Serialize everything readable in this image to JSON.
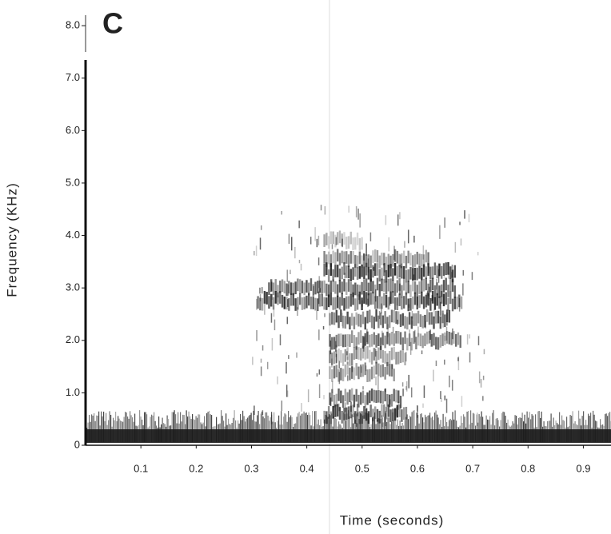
{
  "chart_data": {
    "type": "spectrogram",
    "panel_label": "C",
    "x_label": "Time  (seconds)",
    "y_label": "Frequency  (KHz)",
    "xlim": [
      0,
      0.95
    ],
    "xticks": [
      0.1,
      0.2,
      0.3,
      0.4,
      0.5,
      0.6,
      0.7,
      0.8,
      0.9
    ],
    "ylim": [
      0,
      8.2
    ],
    "yticks": [
      0,
      {
        "value": 1,
        "label": "1.0"
      },
      {
        "value": 2,
        "label": "2.0"
      },
      {
        "value": 3,
        "label": "3.0"
      },
      {
        "value": 4,
        "label": "4.0"
      },
      {
        "value": 5,
        "label": "5.0"
      },
      {
        "value": 6,
        "label": "6.0"
      },
      {
        "value": 7,
        "label": "7.0"
      },
      {
        "value": 8,
        "label": "8.0"
      }
    ],
    "color": "#1a1a1a"
  }
}
